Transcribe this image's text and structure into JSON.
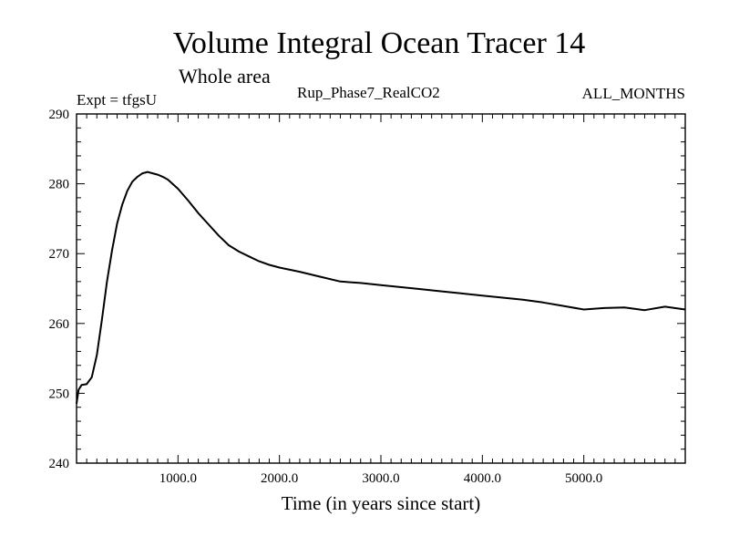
{
  "chart_data": {
    "type": "line",
    "title": "Volume Integral Ocean Tracer 14",
    "subtitle": "Whole area",
    "experiment_label": "Expt = tfgsU",
    "run_label": "Rup_Phase7_RealCO2",
    "months_label": "ALL_MONTHS",
    "xlabel": "Time (in years since start)",
    "ylabel": "",
    "xlim": [
      0,
      6000
    ],
    "ylim": [
      240,
      290
    ],
    "x_ticks_major": [
      1000,
      2000,
      3000,
      4000,
      5000
    ],
    "x_tick_labels": [
      "1000.0",
      "2000.0",
      "3000.0",
      "4000.0",
      "5000.0"
    ],
    "y_ticks_major": [
      240,
      250,
      260,
      270,
      280,
      290
    ],
    "y_tick_labels": [
      "240",
      "250",
      "260",
      "270",
      "280",
      "290"
    ],
    "series": [
      {
        "name": "Ocean Tracer 14",
        "color": "#000000",
        "x": [
          0,
          20,
          50,
          100,
          150,
          200,
          250,
          300,
          350,
          400,
          450,
          500,
          550,
          600,
          650,
          700,
          750,
          800,
          850,
          900,
          1000,
          1100,
          1200,
          1300,
          1400,
          1500,
          1600,
          1700,
          1800,
          1900,
          2000,
          2200,
          2400,
          2600,
          2800,
          3000,
          3200,
          3400,
          3600,
          3800,
          4000,
          4200,
          4400,
          4600,
          4800,
          5000,
          5200,
          5400,
          5600,
          5800,
          6000
        ],
        "y": [
          248.5,
          250.5,
          251.2,
          251.3,
          252.3,
          255.5,
          260.5,
          266.0,
          270.5,
          274.3,
          277.0,
          279.0,
          280.3,
          281.0,
          281.5,
          281.7,
          281.5,
          281.3,
          281.0,
          280.6,
          279.3,
          277.6,
          275.8,
          274.2,
          272.6,
          271.2,
          270.3,
          269.6,
          268.9,
          268.4,
          268.0,
          267.4,
          266.7,
          266.0,
          265.8,
          265.5,
          265.2,
          264.9,
          264.6,
          264.3,
          264.0,
          263.7,
          263.4,
          263.0,
          262.5,
          262.0,
          262.2,
          262.3,
          261.9,
          262.4,
          262.0
        ]
      }
    ]
  }
}
